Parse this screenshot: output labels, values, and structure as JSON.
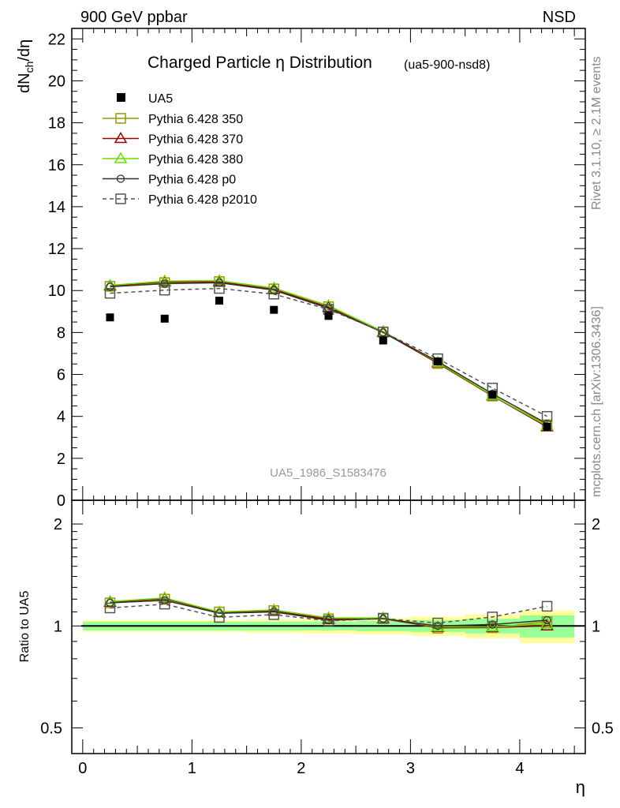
{
  "header": {
    "left": "900 GeV ppbar",
    "right": "NSD"
  },
  "side_labels": {
    "rivet": "Rivet 3.1.10, ≥ 2.1M events",
    "mcplots": "mcplots.cern.ch [arXiv:1306.3436]"
  },
  "chart_data": [
    {
      "type": "scatter",
      "title": "Charged Particle η Distribution",
      "subtitle": "(ua5-900-nsd8)",
      "ylabel": "dN_ch/dη",
      "ylim": [
        0,
        22.5
      ],
      "xlim": [
        -0.1,
        4.6
      ],
      "yticks": [
        0,
        2,
        4,
        6,
        8,
        10,
        12,
        14,
        16,
        18,
        20,
        22
      ],
      "annotation": "UA5_1986_S1583476",
      "legend_placement": "top-left",
      "x": [
        0.25,
        0.75,
        1.25,
        1.75,
        2.25,
        2.75,
        3.25,
        3.75,
        4.25
      ],
      "data": {
        "name": "UA5",
        "values": [
          8.72,
          8.66,
          9.52,
          9.08,
          8.79,
          7.62,
          6.62,
          5.03,
          3.5
        ]
      },
      "series": [
        {
          "name": "Pythia 6.428 350",
          "color": "#999900",
          "marker": "square-open",
          "dash": false,
          "values": [
            10.2,
            10.38,
            10.43,
            10.08,
            9.23,
            8.03,
            6.52,
            4.97,
            3.6
          ]
        },
        {
          "name": "Pythia 6.428 370",
          "color": "#990000",
          "marker": "triangle-open",
          "dash": false,
          "values": [
            10.22,
            10.42,
            10.41,
            10.05,
            9.2,
            8.0,
            6.55,
            4.98,
            3.5
          ]
        },
        {
          "name": "Pythia 6.428 380",
          "color": "#66dd00",
          "marker": "triangle-open",
          "dash": false,
          "values": [
            10.25,
            10.45,
            10.47,
            10.12,
            9.28,
            8.05,
            6.58,
            5.0,
            3.55
          ]
        },
        {
          "name": "Pythia 6.428 p0",
          "color": "#333333",
          "marker": "circle-open",
          "dash": false,
          "values": [
            10.18,
            10.33,
            10.37,
            10.02,
            9.15,
            8.0,
            6.62,
            5.08,
            3.65
          ]
        },
        {
          "name": "Pythia 6.428 p2010",
          "color": "#555555",
          "marker": "square-open",
          "dash": true,
          "values": [
            9.87,
            10.02,
            10.1,
            9.83,
            9.1,
            8.02,
            6.75,
            5.35,
            4.0
          ]
        }
      ]
    },
    {
      "type": "line",
      "ylabel": "Ratio to UA5",
      "ylim": [
        0.42,
        2.35
      ],
      "scale": "log",
      "yticks": [
        0.5,
        1,
        2
      ],
      "xlabel": "η",
      "xticks": [
        0,
        1,
        2,
        3,
        4
      ],
      "band_inner": [
        0.03,
        0.03,
        0.03,
        0.03,
        0.03,
        0.035,
        0.04,
        0.05,
        0.075
      ],
      "band_outer": [
        0.04,
        0.04,
        0.04,
        0.045,
        0.05,
        0.055,
        0.065,
        0.08,
        0.11
      ],
      "x": [
        0.25,
        0.75,
        1.25,
        1.75,
        2.25,
        2.75,
        3.25,
        3.75,
        4.25
      ],
      "series": [
        {
          "name": "Pythia 6.428 350",
          "values": [
            1.17,
            1.2,
            1.1,
            1.11,
            1.05,
            1.055,
            0.985,
            0.988,
            1.03
          ]
        },
        {
          "name": "Pythia 6.428 370",
          "values": [
            1.175,
            1.205,
            1.095,
            1.105,
            1.047,
            1.05,
            0.99,
            0.99,
            1.0
          ]
        },
        {
          "name": "Pythia 6.428 380",
          "values": [
            1.18,
            1.21,
            1.1,
            1.115,
            1.057,
            1.056,
            0.994,
            0.994,
            1.014
          ]
        },
        {
          "name": "Pythia 6.428 p0",
          "values": [
            1.17,
            1.19,
            1.09,
            1.1,
            1.04,
            1.05,
            1.0,
            1.01,
            1.04
          ]
        },
        {
          "name": "Pythia 6.428 p2010",
          "values": [
            1.13,
            1.16,
            1.06,
            1.08,
            1.035,
            1.052,
            1.02,
            1.063,
            1.143
          ]
        }
      ]
    }
  ]
}
